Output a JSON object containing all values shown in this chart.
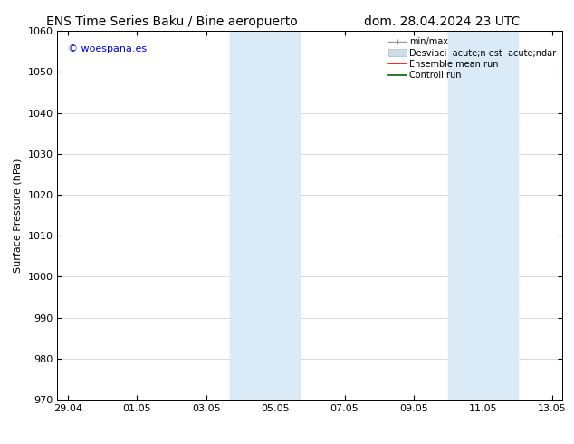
{
  "title_left": "ENS Time Series Baku / Bine aeropuerto",
  "title_right": "dom. 28.04.2024 23 UTC",
  "ylabel": "Surface Pressure (hPa)",
  "ylim": [
    970,
    1060
  ],
  "yticks": [
    970,
    980,
    990,
    1000,
    1010,
    1020,
    1030,
    1040,
    1050,
    1060
  ],
  "xtick_labels": [
    "29.04",
    "01.05",
    "03.05",
    "05.05",
    "07.05",
    "09.05",
    "11.05",
    "13.05"
  ],
  "x_ticks": [
    0,
    2,
    4,
    6,
    8,
    10,
    12,
    14
  ],
  "xlim": [
    -0.3,
    14.3
  ],
  "watermark": "© woespana.es",
  "watermark_color": "#0000dd",
  "shaded_regions": [
    {
      "x_start": 4.7,
      "x_end": 6.7
    },
    {
      "x_start": 11.0,
      "x_end": 13.0
    }
  ],
  "shaded_color": "#daeaf7",
  "background_color": "#ffffff",
  "grid_color": "#cccccc",
  "legend_label_minmax": "min/max",
  "legend_label_std": "Desviaci  acute;n est  acute;ndar",
  "legend_label_ensemble": "Ensemble mean run",
  "legend_label_control": "Controll run",
  "legend_color_minmax": "#999999",
  "legend_color_std": "#ccdde8",
  "legend_color_ensemble": "#ff0000",
  "legend_color_control": "#006600",
  "title_fontsize": 10,
  "label_fontsize": 8,
  "tick_fontsize": 8,
  "legend_fontsize": 7,
  "watermark_fontsize": 8
}
